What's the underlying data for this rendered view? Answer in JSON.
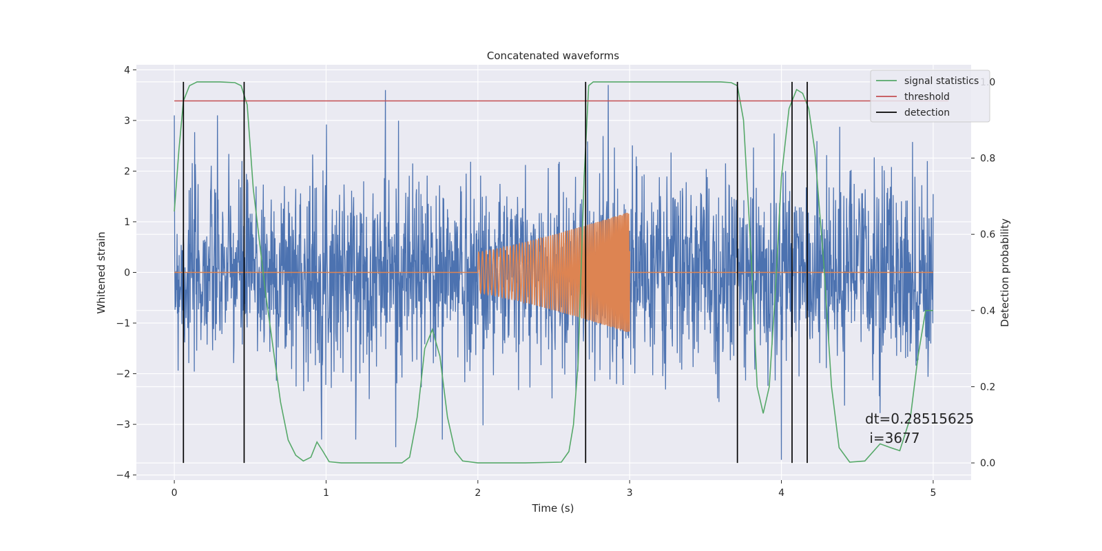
{
  "chart_data": {
    "type": "line",
    "title": "Concatenated waveforms",
    "xlabel": "Time (s)",
    "ylabel": "Whitened strain",
    "y2label": "Detection probability",
    "xlim": [
      -0.25,
      5.25
    ],
    "ylim": [
      -4.1,
      4.1
    ],
    "y2lim": [
      -0.045,
      1.045
    ],
    "x_ticks": [
      "0",
      "1",
      "2",
      "3",
      "4",
      "5"
    ],
    "y_ticks": [
      "−4",
      "−3",
      "−2",
      "−1",
      "0",
      "1",
      "2",
      "3",
      "4"
    ],
    "y2_ticks": [
      "0.0",
      "0.2",
      "0.4",
      "0.6",
      "0.8",
      "1.0"
    ],
    "grid": true,
    "legend_position": "top-right",
    "legend": [
      {
        "label": "signal statistics",
        "color": "#55a868"
      },
      {
        "label": "threshold",
        "color": "#c44e52"
      },
      {
        "label": "detection",
        "color": "#000000"
      }
    ],
    "colors": {
      "noise": "#4c72b0",
      "injection": "#dd8452",
      "stat": "#55a868",
      "threshold": "#c44e52",
      "detection": "#000000",
      "axes_bg": "#eaeaf2"
    },
    "noise_series": {
      "x_range": [
        0,
        5
      ],
      "typical_peak": 2.2,
      "max": 3.6,
      "min": -3.7
    },
    "injection_series": {
      "start": 2.0,
      "end": 3.0,
      "amplitude_start": 0.4,
      "amplitude_end": 1.2,
      "zero_outside": true
    },
    "signal_statistics": {
      "x": [
        0,
        0.03,
        0.06,
        0.1,
        0.15,
        0.2,
        0.3,
        0.4,
        0.44,
        0.48,
        0.52,
        0.6,
        0.7,
        0.75,
        0.8,
        0.85,
        0.9,
        0.94,
        0.98,
        1.02,
        1.1,
        1.3,
        1.5,
        1.55,
        1.6,
        1.65,
        1.7,
        1.75,
        1.8,
        1.85,
        1.9,
        2.0,
        2.3,
        2.55,
        2.6,
        2.63,
        2.66,
        2.7,
        2.73,
        2.76,
        2.8,
        3.0,
        3.3,
        3.6,
        3.67,
        3.71,
        3.75,
        3.8,
        3.84,
        3.88,
        3.92,
        3.96,
        4.0,
        4.05,
        4.1,
        4.14,
        4.18,
        4.22,
        4.28,
        4.33,
        4.38,
        4.45,
        4.55,
        4.65,
        4.72,
        4.78,
        4.85,
        4.9,
        4.95,
        5.0
      ],
      "y": [
        0.66,
        0.82,
        0.95,
        0.99,
        1.0,
        1.0,
        1.0,
        0.998,
        0.99,
        0.94,
        0.72,
        0.45,
        0.16,
        0.06,
        0.02,
        0.005,
        0.015,
        0.055,
        0.03,
        0.003,
        0.0,
        0.0,
        0.0,
        0.015,
        0.12,
        0.3,
        0.35,
        0.28,
        0.12,
        0.03,
        0.005,
        0.0,
        0.0,
        0.002,
        0.03,
        0.1,
        0.26,
        0.75,
        0.99,
        1.0,
        1.0,
        1.0,
        1.0,
        1.0,
        0.998,
        0.99,
        0.9,
        0.55,
        0.2,
        0.13,
        0.2,
        0.45,
        0.75,
        0.93,
        0.98,
        0.97,
        0.93,
        0.82,
        0.52,
        0.2,
        0.04,
        0.002,
        0.005,
        0.05,
        0.04,
        0.032,
        0.12,
        0.28,
        0.4,
        0.4
      ]
    },
    "threshold": 0.95,
    "detections": [
      0.06,
      0.46,
      2.71,
      3.71,
      4.07,
      4.17
    ],
    "annotation": "dt=0.28515625\n i=3677"
  }
}
